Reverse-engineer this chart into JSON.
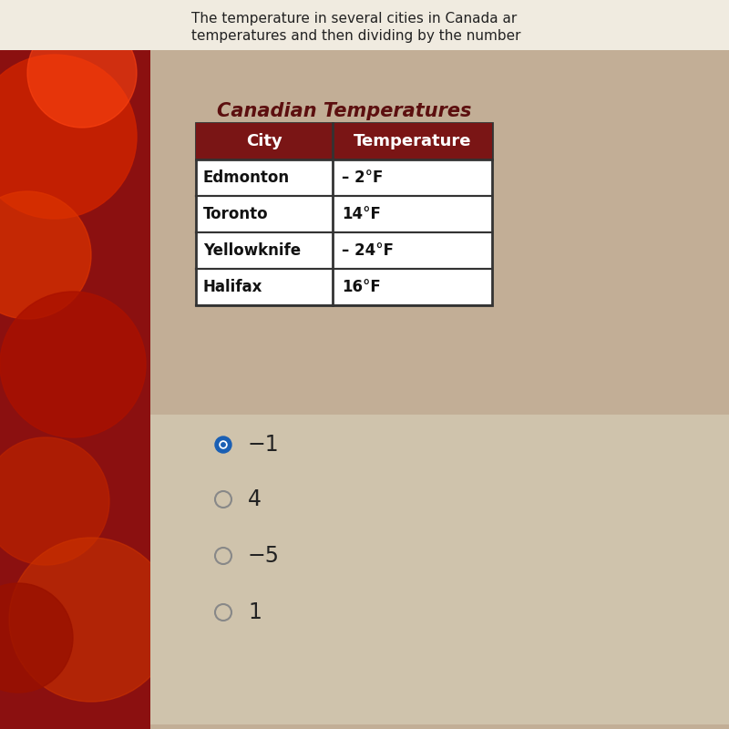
{
  "title_text": "Canadian Temperatures",
  "header_col1": "City",
  "header_col2": "Temperature",
  "rows": [
    [
      "Edmonton",
      "– 2°F"
    ],
    [
      "Toronto",
      "14°F"
    ],
    [
      "Yellowknife",
      "– 24°F"
    ],
    [
      "Halifax",
      "16°F"
    ]
  ],
  "top_text_line1": "The temperature in several cities in Canada ar",
  "top_text_line2": "temperatures and then dividing by the number",
  "answer_options": [
    "−1",
    "4",
    "−5",
    "1"
  ],
  "selected_index": 0,
  "bg_color": "#c2ae96",
  "table_bg": "#ffffff",
  "header_bg": "#7a1515",
  "header_text_color": "#ffffff",
  "title_color": "#5c0f0f",
  "answer_bg": "#cfc3ac",
  "top_bg": "#f0ebe0",
  "selected_fill": "#1a5fb4",
  "unselected_stroke": "#888888",
  "left_photo_color1": "#cc2200",
  "left_photo_color2": "#992200"
}
